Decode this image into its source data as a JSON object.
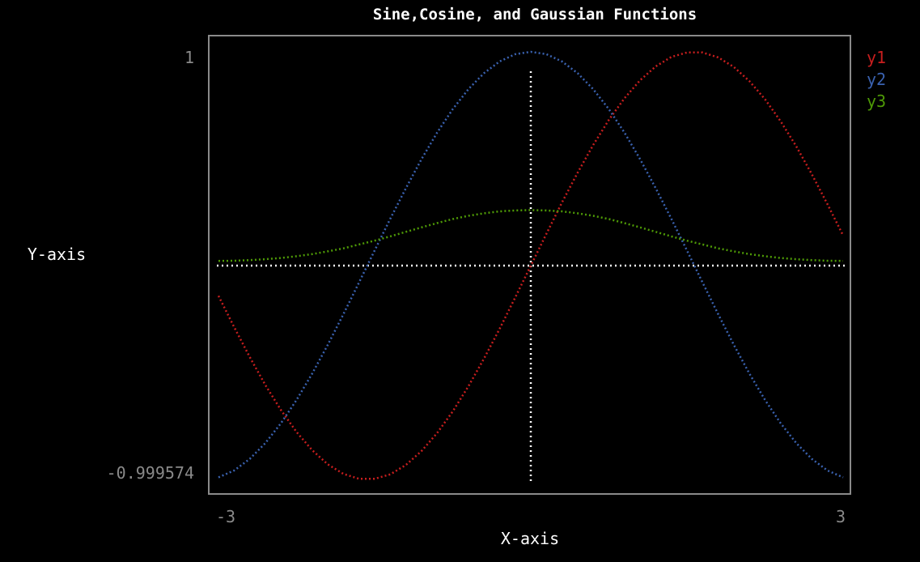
{
  "chart_data": {
    "type": "line",
    "title": "Sine,Cosine, and Gaussian Functions",
    "xlabel": "X-axis",
    "ylabel": "Y-axis",
    "xlim": [
      -3,
      3
    ],
    "ylim": [
      -0.999574,
      1
    ],
    "x_ticks": [
      "-3",
      "3"
    ],
    "y_ticks": [
      "1",
      "-0.999574"
    ],
    "grid": false,
    "legend_position": "right",
    "zero_axes": true,
    "series": [
      {
        "name": "y1",
        "color": "#c81e1e",
        "x": [
          -3.0,
          -2.85,
          -2.7,
          -2.55,
          -2.4,
          -2.25,
          -2.1,
          -1.95,
          -1.8,
          -1.65,
          -1.5,
          -1.35,
          -1.2,
          -1.05,
          -0.9,
          -0.75,
          -0.6,
          -0.45,
          -0.3,
          -0.15,
          0.0,
          0.15,
          0.3,
          0.45,
          0.6,
          0.75,
          0.9,
          1.05,
          1.2,
          1.35,
          1.5,
          1.65,
          1.8,
          1.95,
          2.1,
          2.25,
          2.4,
          2.55,
          2.7,
          2.85,
          3.0
        ],
        "y": [
          -0.141,
          -0.287,
          -0.427,
          -0.558,
          -0.675,
          -0.778,
          -0.863,
          -0.929,
          -0.974,
          -0.997,
          -0.997,
          -0.976,
          -0.932,
          -0.867,
          -0.783,
          -0.682,
          -0.565,
          -0.435,
          -0.296,
          -0.149,
          0.0,
          0.149,
          0.296,
          0.435,
          0.565,
          0.682,
          0.783,
          0.867,
          0.932,
          0.976,
          0.997,
          0.997,
          0.974,
          0.929,
          0.863,
          0.778,
          0.675,
          0.558,
          0.427,
          0.287,
          0.141
        ]
      },
      {
        "name": "y2",
        "color": "#3a62b0",
        "x": [
          -3.0,
          -2.85,
          -2.7,
          -2.55,
          -2.4,
          -2.25,
          -2.1,
          -1.95,
          -1.8,
          -1.65,
          -1.5,
          -1.35,
          -1.2,
          -1.05,
          -0.9,
          -0.75,
          -0.6,
          -0.45,
          -0.3,
          -0.15,
          0.0,
          0.15,
          0.3,
          0.45,
          0.6,
          0.75,
          0.9,
          1.05,
          1.2,
          1.35,
          1.5,
          1.65,
          1.8,
          1.95,
          2.1,
          2.25,
          2.4,
          2.55,
          2.7,
          2.85,
          3.0
        ],
        "y": [
          -0.99,
          -0.958,
          -0.904,
          -0.83,
          -0.737,
          -0.628,
          -0.505,
          -0.37,
          -0.227,
          -0.079,
          0.071,
          0.219,
          0.362,
          0.498,
          0.622,
          0.732,
          0.825,
          0.9,
          0.955,
          0.989,
          1.0,
          0.989,
          0.955,
          0.9,
          0.825,
          0.732,
          0.622,
          0.498,
          0.362,
          0.219,
          0.071,
          -0.079,
          -0.227,
          -0.37,
          -0.505,
          -0.628,
          -0.737,
          -0.83,
          -0.904,
          -0.958,
          -0.99
        ]
      },
      {
        "name": "y3",
        "color": "#4e9a06",
        "x": [
          -3.0,
          -2.85,
          -2.7,
          -2.55,
          -2.4,
          -2.25,
          -2.1,
          -1.95,
          -1.8,
          -1.65,
          -1.5,
          -1.35,
          -1.2,
          -1.05,
          -0.9,
          -0.75,
          -0.6,
          -0.45,
          -0.3,
          -0.15,
          0.0,
          0.15,
          0.3,
          0.45,
          0.6,
          0.75,
          0.9,
          1.05,
          1.2,
          1.35,
          1.5,
          1.65,
          1.8,
          1.95,
          2.1,
          2.25,
          2.4,
          2.55,
          2.7,
          2.85,
          3.0
        ],
        "y": [
          0.022,
          0.023,
          0.026,
          0.03,
          0.036,
          0.044,
          0.054,
          0.067,
          0.081,
          0.099,
          0.117,
          0.137,
          0.158,
          0.179,
          0.199,
          0.218,
          0.233,
          0.245,
          0.254,
          0.258,
          0.26,
          0.258,
          0.254,
          0.245,
          0.233,
          0.218,
          0.199,
          0.179,
          0.158,
          0.137,
          0.117,
          0.099,
          0.081,
          0.067,
          0.054,
          0.044,
          0.036,
          0.03,
          0.026,
          0.023,
          0.022
        ]
      }
    ]
  },
  "colors": {
    "background": "#000000",
    "frame": "#8a8a8a",
    "tick_text": "#8a8a8a",
    "title_text": "#ffffff",
    "axis_label_text": "#ffffff",
    "zero_axes": "#ffffff"
  }
}
